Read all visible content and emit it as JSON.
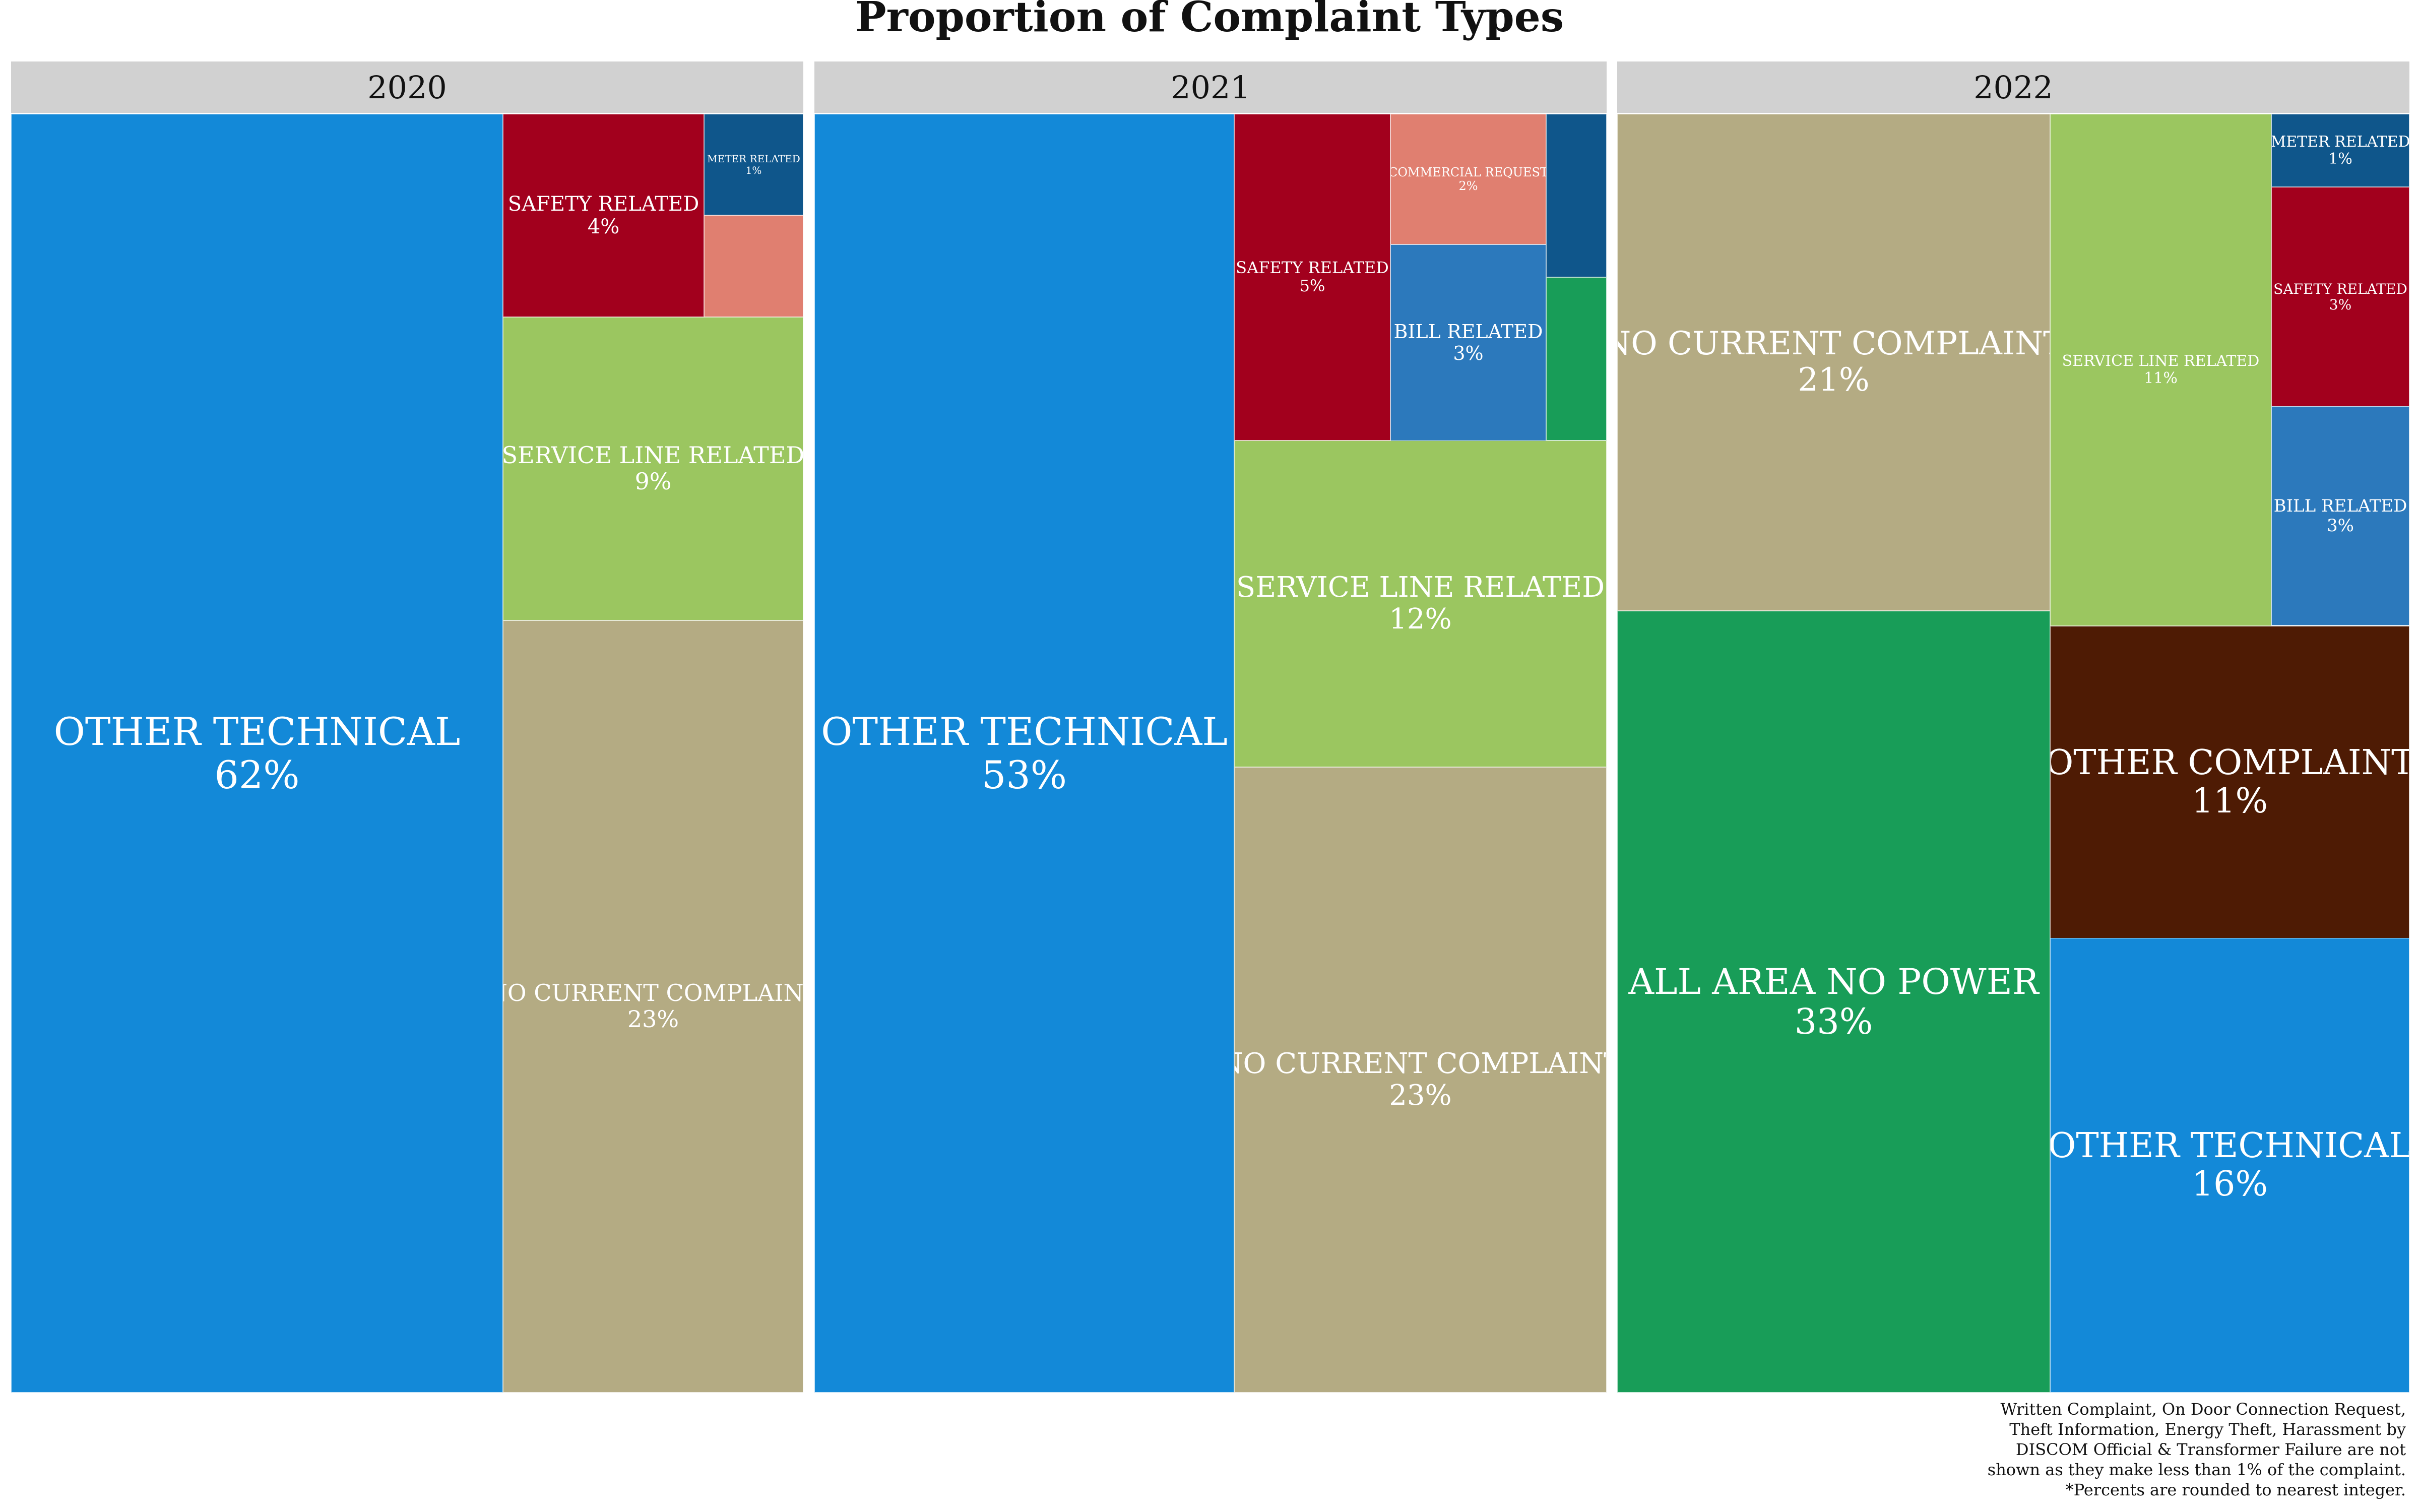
{
  "chart_data": {
    "type": "treemap",
    "title": "Proportion of Complaint Types",
    "panels": [
      {
        "year": "2020",
        "tiles": [
          {
            "category": "OTHER TECHNICAL",
            "percent": 62,
            "label": "62%",
            "color": "#1389d8"
          },
          {
            "category": "SAFETY RELATED",
            "percent": 4,
            "label": "4%",
            "color": "#a2001d"
          },
          {
            "category": "METER RELATED",
            "percent": 1,
            "label": "1%",
            "color": "#0f568b"
          },
          {
            "category": "",
            "percent": 1,
            "label": "",
            "color": "#e07f70"
          },
          {
            "category": "SERVICE LINE RELATED",
            "percent": 9,
            "label": "9%",
            "color": "#9bc660"
          },
          {
            "category": "NO CURRENT COMPLAINT",
            "percent": 23,
            "label": "23%",
            "color": "#b4ab83"
          }
        ]
      },
      {
        "year": "2021",
        "tiles": [
          {
            "category": "OTHER TECHNICAL",
            "percent": 53,
            "label": "53%",
            "color": "#1389d8"
          },
          {
            "category": "SAFETY RELATED",
            "percent": 5,
            "label": "5%",
            "color": "#a2001d"
          },
          {
            "category": "COMMERCIAL REQUEST",
            "percent": 2,
            "label": "2%",
            "color": "#e07f70"
          },
          {
            "category": "",
            "percent": 1,
            "label": "",
            "color": "#0f568b"
          },
          {
            "category": "BILL RELATED",
            "percent": 3,
            "label": "3%",
            "color": "#2c79bc"
          },
          {
            "category": "",
            "percent": 1,
            "label": "",
            "color": "#189d58"
          },
          {
            "category": "SERVICE LINE RELATED",
            "percent": 12,
            "label": "12%",
            "color": "#9bc660"
          },
          {
            "category": "NO CURRENT COMPLAINT",
            "percent": 23,
            "label": "23%",
            "color": "#b4ab83"
          }
        ]
      },
      {
        "year": "2022",
        "tiles": [
          {
            "category": "NO CURRENT COMPLAINT",
            "percent": 21,
            "label": "21%",
            "color": "#b4ab83"
          },
          {
            "category": "ALL AREA NO POWER",
            "percent": 33,
            "label": "33%",
            "color": "#189d58"
          },
          {
            "category": "SERVICE LINE RELATED",
            "percent": 11,
            "label": "11%",
            "color": "#9bc660"
          },
          {
            "category": "METER RELATED",
            "percent": 1,
            "label": "1%",
            "color": "#0f568b"
          },
          {
            "category": "SAFETY RELATED",
            "percent": 3,
            "label": "3%",
            "color": "#a2001d"
          },
          {
            "category": "BILL RELATED",
            "percent": 3,
            "label": "3%",
            "color": "#2c79bc"
          },
          {
            "category": "OTHER COMPLAINT",
            "percent": 11,
            "label": "11%",
            "color": "#4e1b04"
          },
          {
            "category": "OTHER TECHNICAL",
            "percent": 16,
            "label": "16%",
            "color": "#1389d8"
          }
        ]
      }
    ],
    "footnote": "Written Complaint, On Door Connection Request,\nTheft Information, Energy Theft, Harassment by\nDISCOM Official & Transformer Failure are not\nshown as they make less than 1% of the complaint.\n*Percents are rounded to nearest integer."
  }
}
